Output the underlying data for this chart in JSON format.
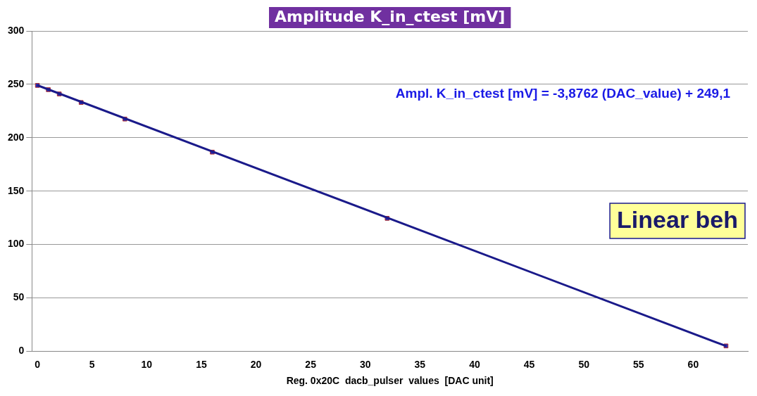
{
  "chart_data": {
    "type": "scatter",
    "title": "Amplitude K_in_ctest [mV]",
    "xlabel": "Reg. 0x20C  dacb_pulser  values  [DAC unit]",
    "x": [
      0,
      1,
      2,
      4,
      8,
      16,
      32,
      63
    ],
    "series": [
      {
        "color": "#2b2bb0",
        "values": [
          249,
          245,
          241,
          233,
          217.5,
          186.5,
          124.5,
          5
        ]
      },
      {
        "type": "line",
        "marker": "none",
        "color": "#1a1a8a",
        "x": [
          0,
          63
        ],
        "values": [
          249.1,
          4.9
        ]
      }
    ],
    "xlim": [
      -0.5,
      65
    ],
    "xticks": [
      0,
      5,
      10,
      15,
      20,
      25,
      30,
      35,
      40,
      45,
      50,
      55,
      60
    ],
    "ylim": [
      0,
      300
    ],
    "yticks": [
      0,
      50,
      100,
      150,
      200,
      250,
      300
    ],
    "grid": "y",
    "marker": "square",
    "legend": false,
    "annotations": [
      "Ampl. K_in_ctest [mV] = -3,8762 (DAC_value) + 249,1",
      "Linear beh"
    ]
  }
}
